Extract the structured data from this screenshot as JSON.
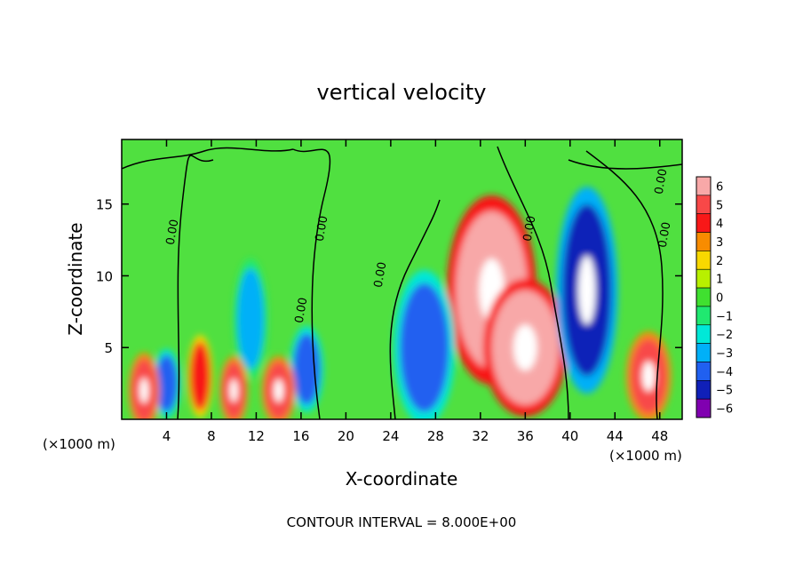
{
  "chart_data": {
    "type": "heatmap",
    "title": "vertical velocity",
    "xlabel": "X-coordinate",
    "ylabel": "Z-coordinate",
    "x_unit_left": "(×1000 m)",
    "x_unit_right": "(×1000 m)",
    "footer": "CONTOUR INTERVAL = 8.000E+00",
    "xlim": [
      0,
      50
    ],
    "ylim": [
      0,
      19.5
    ],
    "x_ticks": [
      4,
      8,
      12,
      16,
      20,
      24,
      28,
      32,
      36,
      40,
      44,
      48
    ],
    "x_tick_labels": [
      "4",
      "8",
      "12",
      "16",
      "20",
      "24",
      "28",
      "32",
      "36",
      "40",
      "44",
      "48"
    ],
    "y_ticks": [
      5,
      10,
      15
    ],
    "y_tick_labels": [
      "5",
      "10",
      "15"
    ],
    "contour_level_label": "0.00",
    "colorbar": {
      "levels": [
        6,
        5,
        4,
        3,
        2,
        1,
        0,
        -1,
        -2,
        -3,
        -4,
        -5,
        -6
      ],
      "labels": [
        "6",
        "5",
        "4",
        "3",
        "2",
        "1",
        "0",
        "−1",
        "−2",
        "−3",
        "−4",
        "−5",
        "−6"
      ],
      "colors": [
        "#f8a8a8",
        "#f84848",
        "#f81818",
        "#f88c00",
        "#f8d800",
        "#b8f000",
        "#40e030",
        "#20e870",
        "#00e8d8",
        "#00b0f8",
        "#2060f0",
        "#1020b8",
        "#8000b0"
      ]
    },
    "features": [
      {
        "x": 33,
        "y": 9,
        "rx": 3.2,
        "ry": 5.5,
        "value": 6
      },
      {
        "x": 36,
        "y": 5,
        "rx": 3,
        "ry": 4,
        "value": 6
      },
      {
        "x": 41.5,
        "y": 9,
        "rx": 2.2,
        "ry": 6,
        "value": -5
      },
      {
        "x": 27,
        "y": 5,
        "rx": 2.2,
        "ry": 4.5,
        "value": -4
      },
      {
        "x": 47,
        "y": 3,
        "rx": 1.6,
        "ry": 2.6,
        "value": 5
      },
      {
        "x": 11.5,
        "y": 7,
        "rx": 1.2,
        "ry": 3.5,
        "value": -3
      },
      {
        "x": 16.5,
        "y": 3.5,
        "rx": 1.2,
        "ry": 2.5,
        "value": -4
      },
      {
        "x": 4,
        "y": 2.5,
        "rx": 1,
        "ry": 2,
        "value": -4
      },
      {
        "x": 2,
        "y": 2,
        "rx": 1.1,
        "ry": 2.2,
        "value": 5
      },
      {
        "x": 7,
        "y": 3,
        "rx": 0.9,
        "ry": 2.4,
        "value": 4
      },
      {
        "x": 10,
        "y": 2,
        "rx": 1,
        "ry": 2,
        "value": 5
      },
      {
        "x": 14,
        "y": 2,
        "rx": 1.2,
        "ry": 2,
        "value": 5
      }
    ]
  }
}
